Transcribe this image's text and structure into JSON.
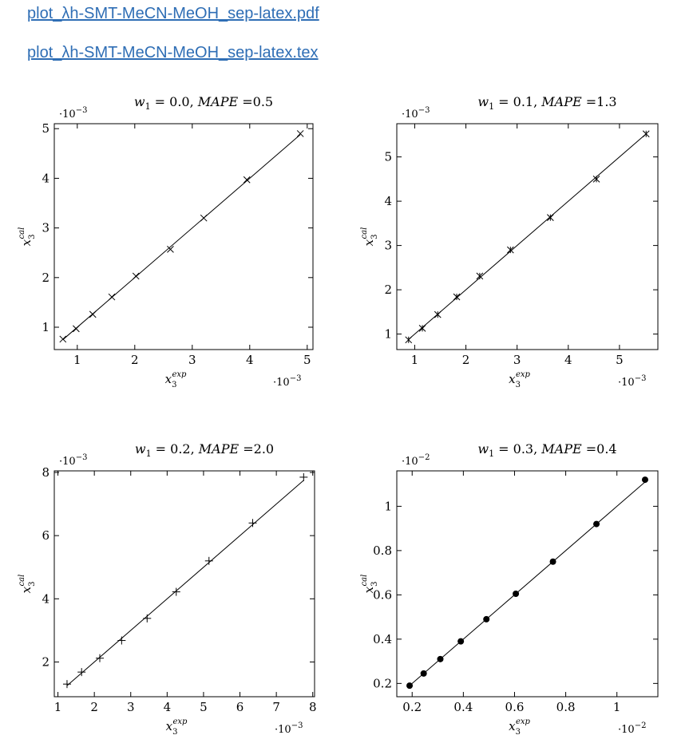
{
  "links": {
    "pdf": "plot_λh-SMT-MeCN-MeOH_sep-latex.pdf",
    "tex": "plot_λh-SMT-MeCN-MeOH_sep-latex.tex"
  },
  "chart_data": [
    {
      "type": "scatter",
      "title": "w1 = 0.0, MAPE =0.5",
      "title_parts": {
        "w": "w",
        "w_sub": "1",
        "eq": " = 0.0, ",
        "mape": "MAPE",
        "mape_val": " =0.5"
      },
      "xlabel": "x3^exp",
      "ylabel": "x3^cal",
      "x_scale": "·10^-3",
      "y_scale": "·10^-3",
      "x_scale_exp": "−3",
      "y_scale_exp": "−3",
      "xlim": [
        0.6,
        5.1
      ],
      "ylim": [
        0.55,
        5.1
      ],
      "xticks": [
        1,
        2,
        3,
        4,
        5
      ],
      "yticks": [
        1,
        2,
        3,
        4,
        5
      ],
      "xtick_labels": [
        "1",
        "2",
        "3",
        "4",
        "5"
      ],
      "ytick_labels": [
        "1",
        "2",
        "3",
        "4",
        "5"
      ],
      "marker": "x",
      "series": [
        {
          "x": [
            0.75,
            0.98,
            1.27,
            1.6,
            2.02,
            2.62,
            3.2,
            3.95,
            4.88
          ],
          "y": [
            0.76,
            0.97,
            1.26,
            1.61,
            2.03,
            2.57,
            3.2,
            3.97,
            4.9
          ]
        }
      ]
    },
    {
      "type": "scatter",
      "title": "w1 = 0.1, MAPE =1.3",
      "title_parts": {
        "w": "w",
        "w_sub": "1",
        "eq": " = 0.1, ",
        "mape": "MAPE",
        "mape_val": " =1.3"
      },
      "xlabel": "x3^exp",
      "ylabel": "x3^cal",
      "x_scale": "·10^-3",
      "y_scale": "·10^-3",
      "x_scale_exp": "−3",
      "y_scale_exp": "−3",
      "xlim": [
        0.65,
        5.75
      ],
      "ylim": [
        0.65,
        5.75
      ],
      "xticks": [
        1,
        2,
        3,
        4,
        5
      ],
      "yticks": [
        1,
        2,
        3,
        4,
        5
      ],
      "xtick_labels": [
        "1",
        "2",
        "3",
        "4",
        "5"
      ],
      "ytick_labels": [
        "1",
        "2",
        "3",
        "4",
        "5"
      ],
      "marker": "asterisk",
      "series": [
        {
          "x": [
            0.88,
            1.15,
            1.45,
            1.82,
            2.27,
            2.87,
            3.65,
            4.55,
            5.52
          ],
          "y": [
            0.87,
            1.13,
            1.44,
            1.84,
            2.31,
            2.9,
            3.63,
            4.5,
            5.52
          ]
        }
      ]
    },
    {
      "type": "scatter",
      "title": "w1 = 0.2, MAPE =2.0",
      "title_parts": {
        "w": "w",
        "w_sub": "1",
        "eq": " = 0.2, ",
        "mape": "MAPE",
        "mape_val": " =2.0"
      },
      "xlabel": "x3^exp",
      "ylabel": "x3^cal",
      "x_scale": "·10^-3",
      "y_scale": "·10^-3",
      "x_scale_exp": "−3",
      "y_scale_exp": "−3",
      "xlim": [
        0.9,
        8.05
      ],
      "ylim": [
        0.9,
        8.05
      ],
      "xticks": [
        1,
        2,
        3,
        4,
        5,
        6,
        7,
        8
      ],
      "yticks": [
        2,
        4,
        6,
        8
      ],
      "xtick_labels": [
        "1",
        "2",
        "3",
        "4",
        "5",
        "6",
        "7",
        "8"
      ],
      "ytick_labels": [
        "2",
        "4",
        "6",
        "8"
      ],
      "marker": "plus",
      "series": [
        {
          "x": [
            1.25,
            1.65,
            2.15,
            2.75,
            3.45,
            4.25,
            5.15,
            6.35,
            7.75
          ],
          "y": [
            1.3,
            1.68,
            2.12,
            2.68,
            3.38,
            4.22,
            5.2,
            6.4,
            7.85
          ]
        }
      ]
    },
    {
      "type": "scatter",
      "title": "w1 = 0.3, MAPE =0.4",
      "title_parts": {
        "w": "w",
        "w_sub": "1",
        "eq": " = 0.3, ",
        "mape": "MAPE",
        "mape_val": " =0.4"
      },
      "xlabel": "x3^exp",
      "ylabel": "x3^cal",
      "x_scale": "·10^-2",
      "y_scale": "·10^-2",
      "x_scale_exp": "−2",
      "y_scale_exp": "−2",
      "xlim": [
        0.14,
        1.16
      ],
      "ylim": [
        0.14,
        1.16
      ],
      "xticks": [
        0.2,
        0.4,
        0.6,
        0.8,
        1.0
      ],
      "yticks": [
        0.2,
        0.4,
        0.6,
        0.8,
        1.0
      ],
      "xtick_labels": [
        "0.2",
        "0.4",
        "0.6",
        "0.8",
        "1"
      ],
      "ytick_labels": [
        "0.2",
        "0.4",
        "0.6",
        "0.8",
        "1"
      ],
      "marker": "dot",
      "series": [
        {
          "x": [
            0.19,
            0.245,
            0.31,
            0.39,
            0.49,
            0.605,
            0.75,
            0.92,
            1.11
          ],
          "y": [
            0.19,
            0.245,
            0.31,
            0.39,
            0.49,
            0.605,
            0.75,
            0.92,
            1.12
          ]
        }
      ]
    }
  ]
}
